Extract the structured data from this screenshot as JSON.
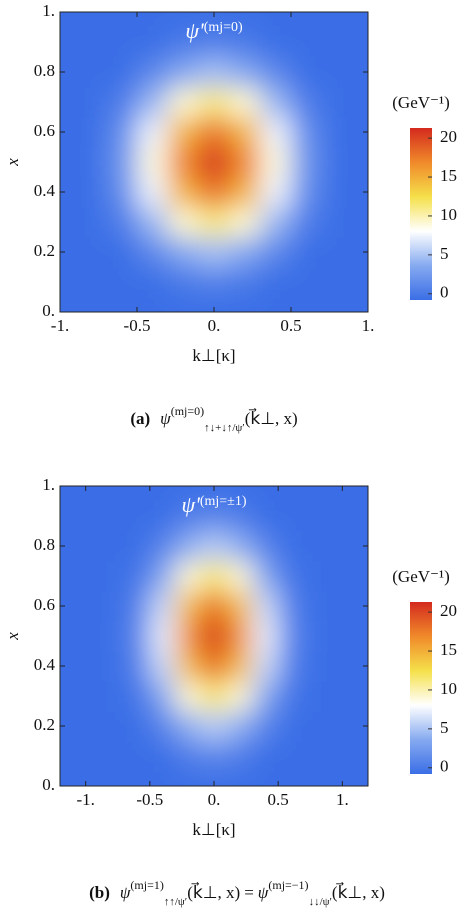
{
  "chart_data": [
    {
      "type": "heatmap",
      "title": "ψ'",
      "title_sup": "(mj=0)",
      "x_label": "k⊥[κ]",
      "y_label": "x",
      "x": [
        -1,
        -0.8,
        -0.6,
        -0.4,
        -0.2,
        0,
        0.2,
        0.4,
        0.6,
        0.8,
        1
      ],
      "y": [
        0,
        0.1,
        0.2,
        0.3,
        0.4,
        0.5,
        0.6,
        0.7,
        0.8,
        0.9,
        1
      ],
      "z": [
        [
          -2.0,
          -2.0,
          -1.9,
          -1.7,
          -1.4,
          -1.3,
          -1.4,
          -1.7,
          -1.9,
          -2.0,
          -2.0
        ],
        [
          -2.0,
          -1.9,
          -1.5,
          -0.8,
          0.1,
          0.5,
          0.1,
          -0.8,
          -1.5,
          -1.9,
          -2.0
        ],
        [
          -1.9,
          -1.7,
          -0.8,
          1.1,
          3.5,
          4.7,
          3.5,
          1.1,
          -0.8,
          -1.7,
          -1.9
        ],
        [
          -1.9,
          -1.3,
          0.4,
          4.3,
          9.1,
          11.3,
          9.1,
          4.3,
          0.4,
          -1.3,
          -1.9
        ],
        [
          -1.8,
          -1.0,
          1.6,
          7.4,
          14.6,
          18.0,
          14.6,
          7.4,
          1.6,
          -1.0,
          -1.8
        ],
        [
          -1.8,
          -0.9,
          2.1,
          8.8,
          17.1,
          21.0,
          17.1,
          8.8,
          2.1,
          -0.9,
          -1.8
        ],
        [
          -1.8,
          -1.0,
          1.6,
          7.4,
          14.6,
          18.0,
          14.6,
          7.4,
          1.6,
          -1.0,
          -1.8
        ],
        [
          -1.9,
          -1.3,
          0.4,
          4.3,
          9.1,
          11.3,
          9.1,
          4.3,
          0.4,
          -1.3,
          -1.9
        ],
        [
          -1.9,
          -1.7,
          -0.8,
          1.1,
          3.5,
          4.7,
          3.5,
          1.1,
          -0.8,
          -1.7,
          -1.9
        ],
        [
          -2.0,
          -1.9,
          -1.5,
          -0.8,
          0.1,
          0.5,
          0.1,
          -0.8,
          -1.5,
          -1.9,
          -2.0
        ],
        [
          -2.0,
          -2.0,
          -1.9,
          -1.7,
          -1.4,
          -1.3,
          -1.4,
          -1.7,
          -1.9,
          -2.0,
          -2.0
        ]
      ],
      "xlim": [
        -1,
        1
      ],
      "xticks": [
        {
          "value": -1,
          "label": "-1."
        },
        -0.5,
        {
          "value": 0,
          "label": "0."
        },
        0.5,
        {
          "value": 1,
          "label": "1."
        }
      ],
      "ylim": [
        0,
        1
      ],
      "yticks": [
        {
          "value": 0,
          "label": "0."
        },
        0.2,
        0.4,
        0.6,
        0.8,
        {
          "value": 1,
          "label": "1."
        }
      ],
      "colormap": [
        "#3b6ee6",
        "#86aaf0",
        "#ffffff",
        "#f5e04a",
        "#f08a2a",
        "#d42a1e"
      ],
      "colorbar_label": "(GeV⁻¹)",
      "colorbar_lim": [
        -0.8,
        21.3
      ],
      "colorbar_ticks": [
        0,
        5,
        10,
        15,
        20
      ],
      "caption_label": "(a)",
      "caption_terms": [
        {
          "symbol": "ψ",
          "sup": "(mj=0)",
          "sub": "↑↓+↓↑/ψ′",
          "args": "(k⃗⊥, x)"
        }
      ]
    },
    {
      "type": "heatmap",
      "title": "ψ'",
      "title_sup": "(mj=±1)",
      "x_label": "k⊥[κ]",
      "y_label": "x",
      "x": [
        -1,
        -0.8,
        -0.6,
        -0.4,
        -0.2,
        0,
        0.2,
        0.4,
        0.6,
        0.8,
        1
      ],
      "y": [
        0,
        0.1,
        0.2,
        0.3,
        0.4,
        0.5,
        0.6,
        0.7,
        0.8,
        0.9,
        1
      ],
      "z": [
        [
          -2.0,
          -2.0,
          -1.9,
          -1.6,
          -1.2,
          -1.1,
          -1.2,
          -1.6,
          -1.9,
          -2.0,
          -2.0
        ],
        [
          -2.0,
          -1.9,
          -1.6,
          -0.8,
          0.4,
          1.0,
          0.4,
          -0.8,
          -1.6,
          -1.9,
          -2.0
        ],
        [
          -2.0,
          -1.8,
          -1.0,
          0.9,
          3.9,
          5.4,
          3.9,
          0.9,
          -1.0,
          -1.8,
          -2.0
        ],
        [
          -2.0,
          -1.6,
          -0.2,
          3.5,
          9.0,
          11.8,
          9.0,
          3.5,
          -0.2,
          -1.6,
          -2.0
        ],
        [
          -1.9,
          -1.5,
          0.6,
          6.1,
          14.2,
          18.2,
          14.2,
          6.1,
          0.6,
          -1.5,
          -1.9
        ],
        [
          -1.9,
          -1.4,
          1.0,
          7.2,
          16.4,
          21.0,
          16.4,
          7.2,
          1.0,
          -1.4,
          -1.9
        ],
        [
          -1.9,
          -1.5,
          0.6,
          6.1,
          14.2,
          18.2,
          14.2,
          6.1,
          0.6,
          -1.5,
          -1.9
        ],
        [
          -2.0,
          -1.6,
          -0.2,
          3.5,
          9.0,
          11.8,
          9.0,
          3.5,
          -0.2,
          -1.6,
          -2.0
        ],
        [
          -2.0,
          -1.8,
          -1.0,
          0.9,
          3.9,
          5.4,
          3.9,
          0.9,
          -1.0,
          -1.8,
          -2.0
        ],
        [
          -2.0,
          -1.9,
          -1.6,
          -0.8,
          0.4,
          1.0,
          0.4,
          -0.8,
          -1.6,
          -1.9,
          -2.0
        ],
        [
          -2.0,
          -2.0,
          -1.9,
          -1.6,
          -1.2,
          -1.1,
          -1.2,
          -1.6,
          -1.9,
          -2.0,
          -2.0
        ]
      ],
      "xlim": [
        -1.2,
        1.2
      ],
      "xticks": [
        {
          "value": -1,
          "label": "-1."
        },
        -0.5,
        {
          "value": 0,
          "label": "0."
        },
        0.5,
        {
          "value": 1,
          "label": "1."
        }
      ],
      "ylim": [
        0,
        1
      ],
      "yticks": [
        {
          "value": 0,
          "label": "0."
        },
        0.2,
        0.4,
        0.6,
        0.8,
        {
          "value": 1,
          "label": "1."
        }
      ],
      "colormap": [
        "#3b6ee6",
        "#86aaf0",
        "#ffffff",
        "#f5e04a",
        "#f08a2a",
        "#d42a1e"
      ],
      "colorbar_label": "(GeV⁻¹)",
      "colorbar_lim": [
        -0.8,
        21.3
      ],
      "colorbar_ticks": [
        0,
        5,
        10,
        15,
        20
      ],
      "caption_label": "(b)",
      "caption_joiner": "=",
      "caption_terms": [
        {
          "symbol": "ψ",
          "sup": "(mj=1)",
          "sub": "↑↑/ψ′",
          "args": "(k⃗⊥, x)"
        },
        {
          "symbol": "ψ",
          "sup": "(mj=−1)",
          "sub": "↓↓/ψ′",
          "args": "(k⃗⊥, x)"
        }
      ]
    }
  ]
}
